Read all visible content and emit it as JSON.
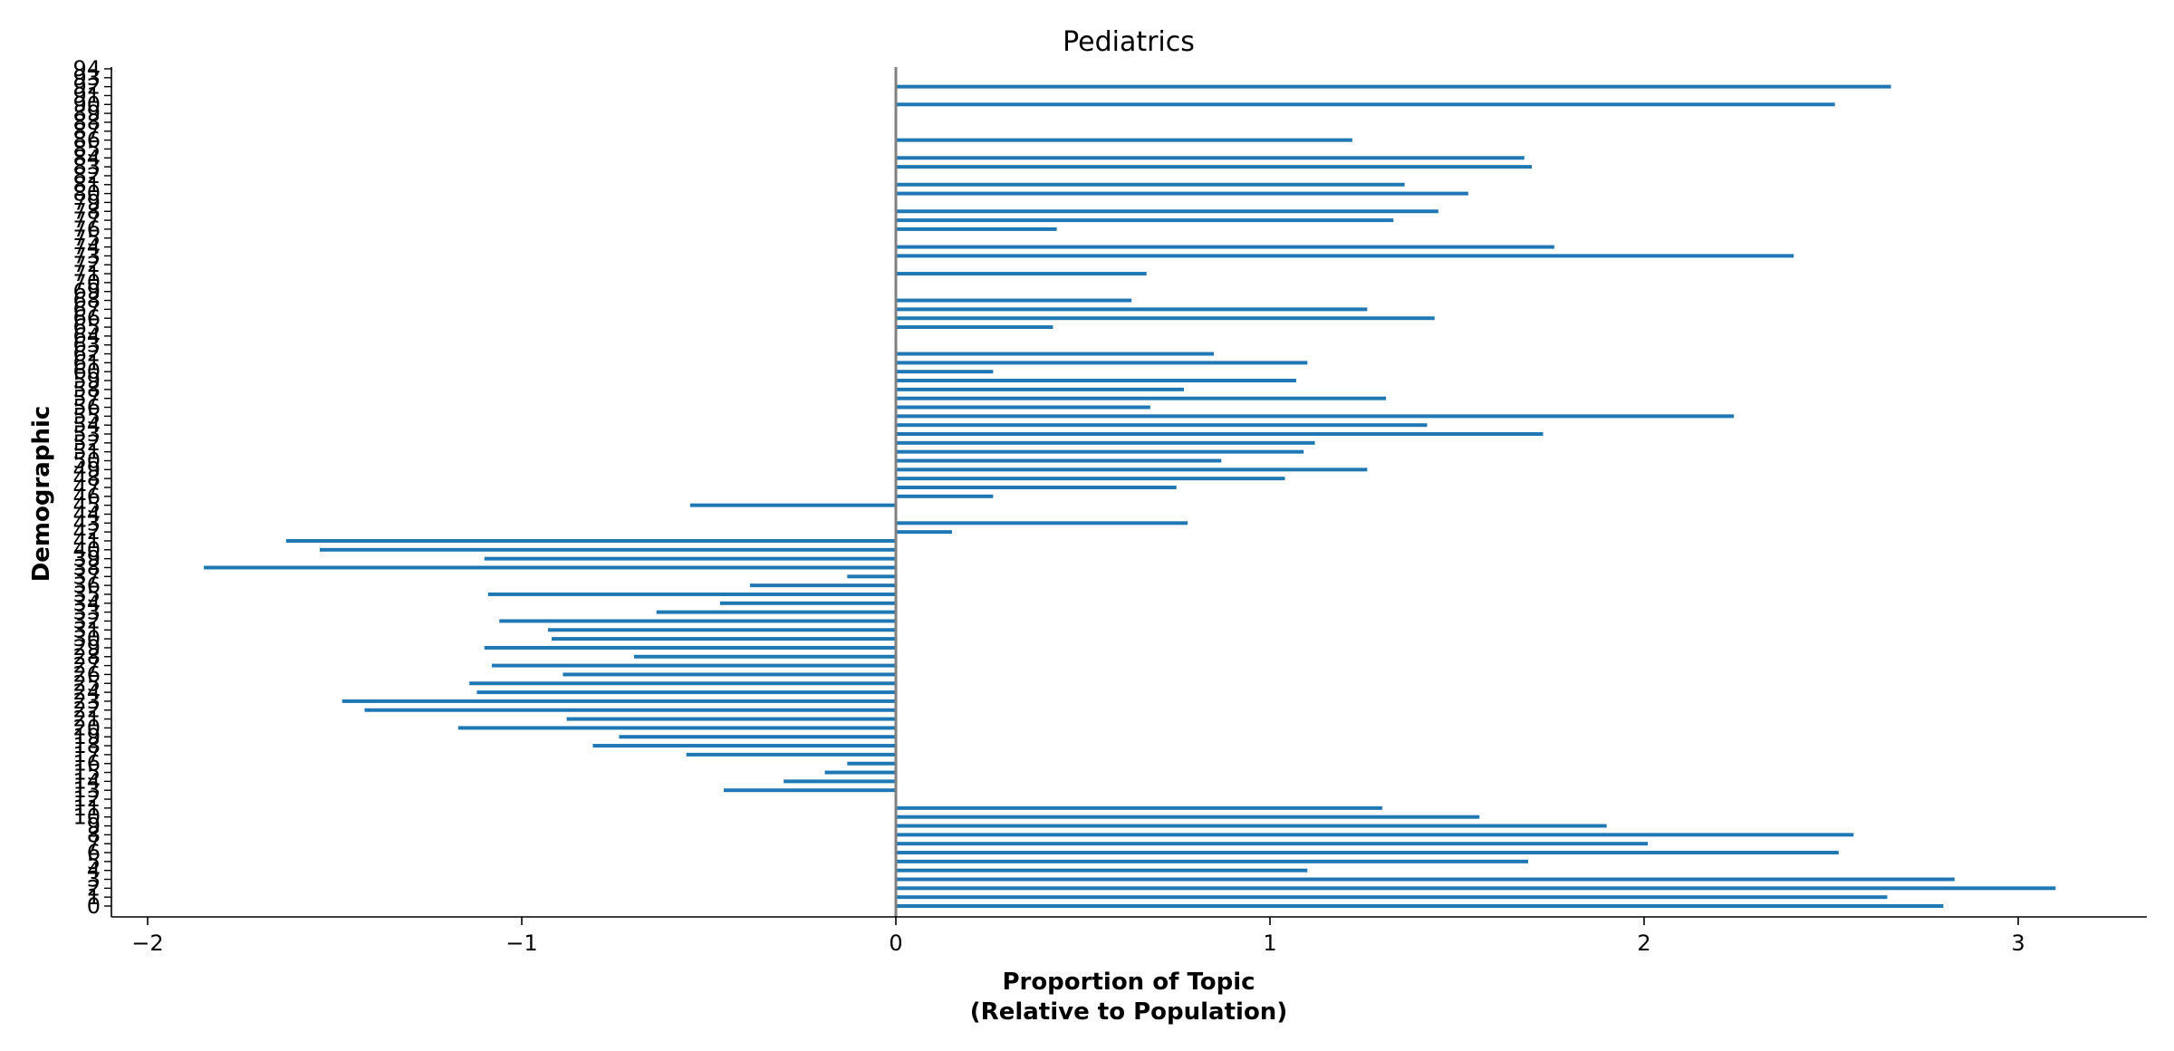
{
  "chart_data": {
    "type": "bar",
    "orientation": "horizontal",
    "title": "Pediatrics",
    "xlabel": [
      "Proportion of Topic",
      "(Relative to Population)"
    ],
    "ylabel": "Demographic",
    "xlim": [
      -2.1,
      3.35
    ],
    "xticks": [
      -2,
      -1,
      0,
      1,
      2,
      3
    ],
    "xtick_labels": [
      "−2",
      "−1",
      "0",
      "1",
      "2",
      "3"
    ],
    "categories": [
      "0",
      "1",
      "2",
      "3",
      "4",
      "5",
      "6",
      "7",
      "8",
      "9",
      "10",
      "11",
      "12",
      "13",
      "14",
      "15",
      "16",
      "17",
      "18",
      "19",
      "20",
      "21",
      "22",
      "23",
      "24",
      "25",
      "26",
      "27",
      "28",
      "29",
      "30",
      "31",
      "32",
      "33",
      "34",
      "35",
      "36",
      "37",
      "38",
      "39",
      "40",
      "41",
      "42",
      "43",
      "44",
      "45",
      "46",
      "47",
      "48",
      "49",
      "50",
      "51",
      "52",
      "53",
      "54",
      "55",
      "56",
      "57",
      "58",
      "59",
      "60",
      "61",
      "62",
      "63",
      "64",
      "65",
      "66",
      "67",
      "68",
      "69",
      "70",
      "71",
      "72",
      "73",
      "74",
      "75",
      "76",
      "77",
      "78",
      "79",
      "80",
      "81",
      "82",
      "83",
      "84",
      "85",
      "86",
      "87",
      "88",
      "89",
      "90",
      "91",
      "92",
      "93",
      "94"
    ],
    "values": [
      2.8,
      2.65,
      3.1,
      2.83,
      1.1,
      1.69,
      2.52,
      2.01,
      2.56,
      1.9,
      1.56,
      1.3,
      0.0,
      -0.46,
      -0.3,
      -0.19,
      -0.13,
      -0.56,
      -0.81,
      -0.74,
      -1.17,
      -0.88,
      -1.42,
      -1.48,
      -1.12,
      -1.14,
      -0.89,
      -1.08,
      -0.7,
      -1.1,
      -0.92,
      -0.93,
      -1.06,
      -0.64,
      -0.47,
      -1.09,
      -0.39,
      -0.13,
      -1.85,
      -1.1,
      -1.54,
      -1.63,
      0.15,
      0.78,
      0.0,
      -0.55,
      0.26,
      0.75,
      1.04,
      1.26,
      0.87,
      1.09,
      1.12,
      1.73,
      1.42,
      2.24,
      0.68,
      1.31,
      0.77,
      1.07,
      0.26,
      1.1,
      0.85,
      0.0,
      0.0,
      0.42,
      1.44,
      1.26,
      0.63,
      0.0,
      0.0,
      0.67,
      0.0,
      2.4,
      1.76,
      0.0,
      0.43,
      1.33,
      1.45,
      0.0,
      1.53,
      1.36,
      0.0,
      1.7,
      1.68,
      0.0,
      1.22,
      0.0,
      0.0,
      0.0,
      2.51,
      0.0,
      2.66,
      0.0,
      0.0
    ],
    "bar_color": "#1f77b4",
    "zero_line_color": "#808080",
    "grid": false
  }
}
